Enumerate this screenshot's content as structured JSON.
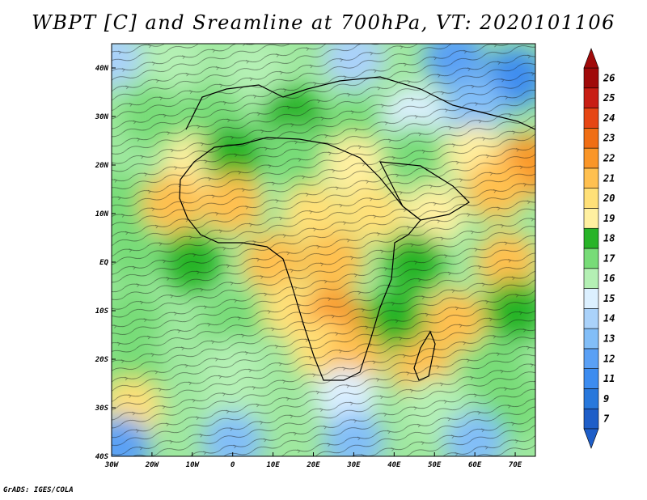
{
  "title": "WBPT [C] and Sreamline at 700hPa, VT: 2020101106",
  "footer": "GrADS: IGES/COLA",
  "map": {
    "lon_range": [
      -30,
      75
    ],
    "lat_range": [
      -40,
      45
    ],
    "lon_ticks": [
      {
        "value": -30,
        "label": "30W"
      },
      {
        "value": -20,
        "label": "20W"
      },
      {
        "value": -10,
        "label": "10W"
      },
      {
        "value": 0,
        "label": "0"
      },
      {
        "value": 10,
        "label": "10E"
      },
      {
        "value": 20,
        "label": "20E"
      },
      {
        "value": 30,
        "label": "30E"
      },
      {
        "value": 40,
        "label": "40E"
      },
      {
        "value": 50,
        "label": "50E"
      },
      {
        "value": 60,
        "label": "60E"
      },
      {
        "value": 70,
        "label": "70E"
      }
    ],
    "lat_ticks": [
      {
        "value": 40,
        "label": "40N"
      },
      {
        "value": 30,
        "label": "30N"
      },
      {
        "value": 20,
        "label": "20N"
      },
      {
        "value": 10,
        "label": "10N"
      },
      {
        "value": 0,
        "label": "EQ"
      },
      {
        "value": -10,
        "label": "10S"
      },
      {
        "value": -20,
        "label": "20S"
      },
      {
        "value": -30,
        "label": "30S"
      },
      {
        "value": -40,
        "label": "40S"
      }
    ]
  },
  "colorbar": {
    "labels": [
      "7",
      "9",
      "11",
      "12",
      "13",
      "14",
      "15",
      "16",
      "17",
      "18",
      "19",
      "20",
      "21",
      "22",
      "23",
      "24",
      "25",
      "26"
    ],
    "colors": [
      "#1e5ec8",
      "#2878dc",
      "#3c8cf0",
      "#5aa0f5",
      "#82bef8",
      "#aad2fa",
      "#dcf0ff",
      "#b4f0b4",
      "#78dc78",
      "#28b428",
      "#fff0a0",
      "#ffe078",
      "#ffc050",
      "#fa9628",
      "#f06e14",
      "#e64614",
      "#c81e14",
      "#a00a0a"
    ]
  },
  "regions": [
    {
      "lon": -30,
      "lat": 42,
      "val": 14
    },
    {
      "lon": -15,
      "lat": 42,
      "val": 16
    },
    {
      "lon": 5,
      "lat": 40,
      "val": 16
    },
    {
      "lon": 30,
      "lat": 42,
      "val": 14
    },
    {
      "lon": 55,
      "lat": 42,
      "val": 12
    },
    {
      "lon": 70,
      "lat": 38,
      "val": 11
    },
    {
      "lon": 60,
      "lat": 32,
      "val": 13
    },
    {
      "lon": 45,
      "lat": 30,
      "val": 15
    },
    {
      "lon": -20,
      "lat": 30,
      "val": 17
    },
    {
      "lon": -5,
      "lat": 30,
      "val": 17
    },
    {
      "lon": 15,
      "lat": 30,
      "val": 18
    },
    {
      "lon": 30,
      "lat": 28,
      "val": 17
    },
    {
      "lon": -10,
      "lat": 20,
      "val": 19
    },
    {
      "lon": 0,
      "lat": 22,
      "val": 18
    },
    {
      "lon": 15,
      "lat": 22,
      "val": 17
    },
    {
      "lon": 30,
      "lat": 20,
      "val": 19
    },
    {
      "lon": 45,
      "lat": 22,
      "val": 17
    },
    {
      "lon": 60,
      "lat": 22,
      "val": 19
    },
    {
      "lon": 73,
      "lat": 20,
      "val": 22
    },
    {
      "lon": 65,
      "lat": 15,
      "val": 21
    },
    {
      "lon": -28,
      "lat": 12,
      "val": 17
    },
    {
      "lon": -15,
      "lat": 12,
      "val": 21
    },
    {
      "lon": 0,
      "lat": 12,
      "val": 21
    },
    {
      "lon": 20,
      "lat": 10,
      "val": 20
    },
    {
      "lon": 35,
      "lat": 10,
      "val": 20
    },
    {
      "lon": 50,
      "lat": 10,
      "val": 19
    },
    {
      "lon": -25,
      "lat": 2,
      "val": 17
    },
    {
      "lon": -10,
      "lat": 0,
      "val": 18
    },
    {
      "lon": 10,
      "lat": 0,
      "val": 21
    },
    {
      "lon": 25,
      "lat": 0,
      "val": 21
    },
    {
      "lon": 45,
      "lat": 0,
      "val": 18
    },
    {
      "lon": 68,
      "lat": 0,
      "val": 21
    },
    {
      "lon": -25,
      "lat": -12,
      "val": 17
    },
    {
      "lon": 0,
      "lat": -12,
      "val": 17
    },
    {
      "lon": 15,
      "lat": -10,
      "val": 20
    },
    {
      "lon": 25,
      "lat": -12,
      "val": 22
    },
    {
      "lon": 40,
      "lat": -12,
      "val": 18
    },
    {
      "lon": 55,
      "lat": -12,
      "val": 21
    },
    {
      "lon": 70,
      "lat": -10,
      "val": 18
    },
    {
      "lon": -25,
      "lat": -22,
      "val": 17
    },
    {
      "lon": 0,
      "lat": -22,
      "val": 16
    },
    {
      "lon": 22,
      "lat": -18,
      "val": 20
    },
    {
      "lon": 30,
      "lat": -20,
      "val": 21
    },
    {
      "lon": 47,
      "lat": -22,
      "val": 21
    },
    {
      "lon": 65,
      "lat": -22,
      "val": 17
    },
    {
      "lon": -25,
      "lat": -30,
      "val": 20
    },
    {
      "lon": 0,
      "lat": -30,
      "val": 16
    },
    {
      "lon": 28,
      "lat": -28,
      "val": 15
    },
    {
      "lon": 50,
      "lat": -30,
      "val": 16
    },
    {
      "lon": 70,
      "lat": -30,
      "val": 17
    },
    {
      "lon": -28,
      "lat": -38,
      "val": 12
    },
    {
      "lon": 0,
      "lat": -37,
      "val": 13
    },
    {
      "lon": 30,
      "lat": -37,
      "val": 13
    },
    {
      "lon": 60,
      "lat": -37,
      "val": 13
    }
  ]
}
